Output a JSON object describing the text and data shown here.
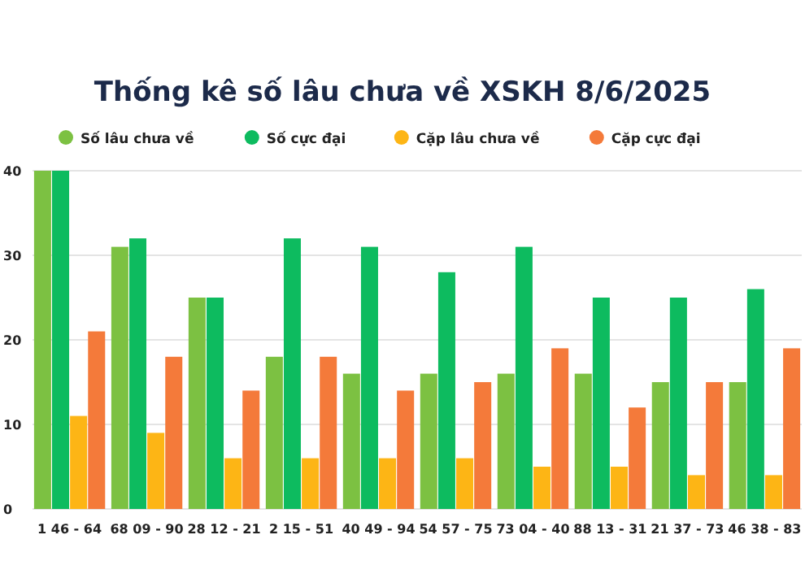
{
  "chart_data": {
    "type": "bar",
    "title": "Thống kê số lâu chưa về XSKH 8/6/2025",
    "categories": [
      "1 46 - 64",
      "68 09 - 90",
      "28 12 - 21",
      "2 15 - 51",
      "40 49 - 94",
      "54 57 - 75",
      "73 04 - 40",
      "88 13 - 31",
      "21 37 - 73",
      "46 38 - 83"
    ],
    "series": [
      {
        "name": "Số lâu chưa về",
        "color": "#7cc142",
        "values": [
          40,
          31,
          25,
          18,
          16,
          16,
          16,
          16,
          15,
          15
        ]
      },
      {
        "name": "Số cực đại",
        "color": "#0dbb5f",
        "values": [
          40,
          32,
          25,
          32,
          31,
          28,
          31,
          25,
          25,
          26
        ]
      },
      {
        "name": "Cặp lâu chưa về",
        "color": "#fdb515",
        "values": [
          11,
          9,
          6,
          6,
          6,
          6,
          5,
          5,
          4,
          4
        ]
      },
      {
        "name": "Cặp cực đại",
        "color": "#f47a3a",
        "values": [
          21,
          18,
          14,
          18,
          14,
          15,
          19,
          12,
          15,
          19
        ]
      }
    ],
    "ylim": [
      0,
      40
    ],
    "yticks": [
      0,
      10,
      20,
      30,
      40
    ],
    "grid": "y",
    "legend": "top"
  }
}
